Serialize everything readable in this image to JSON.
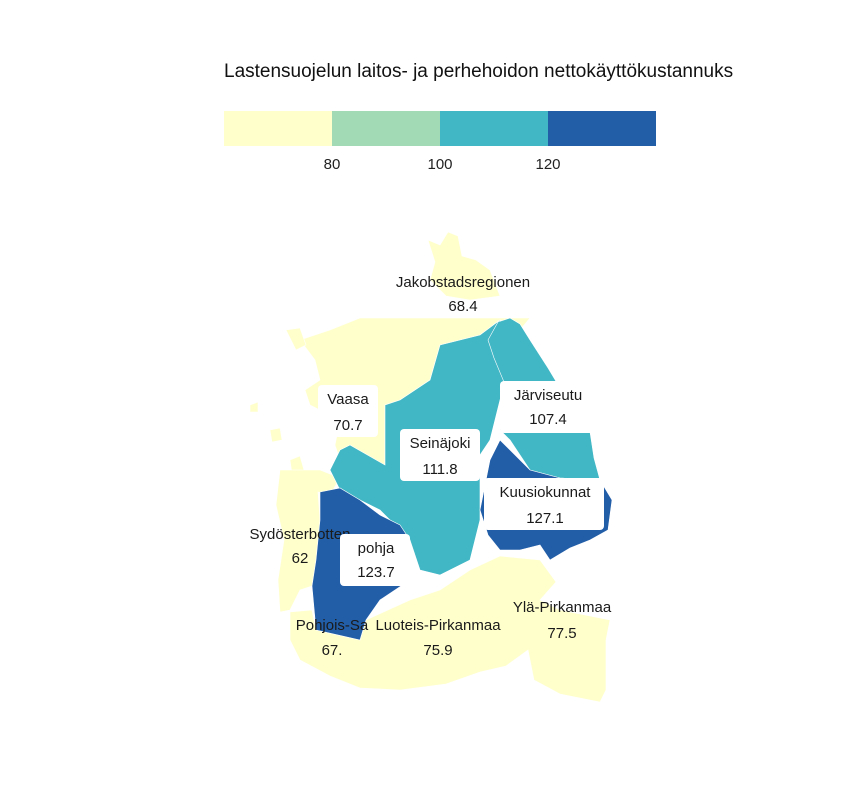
{
  "title": "Lastensuojelun laitos- ja perhehoidon nettokäyttökustannuks",
  "legend": {
    "breaks": [
      "80",
      "100",
      "120"
    ],
    "colors": [
      "#ffffcc",
      "#a1dab4",
      "#41b6c4",
      "#225ea8"
    ]
  },
  "regions": [
    {
      "name": "Jakobstadsregionen",
      "value": "68.4",
      "color": "#ffffcc"
    },
    {
      "name": "Vaasa",
      "value": "70.7",
      "color": "#ffffcc"
    },
    {
      "name": "Järviseutu",
      "value": "107.4",
      "color": "#41b6c4"
    },
    {
      "name": "Seinäjoki",
      "value": "111.8",
      "color": "#41b6c4"
    },
    {
      "name": "Kuusiokunnat",
      "value": "127.1",
      "color": "#225ea8"
    },
    {
      "name": "Sydösterbotten",
      "value": "62",
      "color": "#ffffcc"
    },
    {
      "name": "pohja",
      "value": "123.7",
      "color": "#225ea8"
    },
    {
      "name": "Ylä-Pirkanmaa",
      "value": "77.5",
      "color": "#ffffcc"
    },
    {
      "name": "Pohjois-Sa",
      "value": "67.",
      "color": "#ffffcc"
    },
    {
      "name": "Luoteis-Pirkanmaa",
      "value": "75.9",
      "color": "#ffffcc"
    }
  ]
}
